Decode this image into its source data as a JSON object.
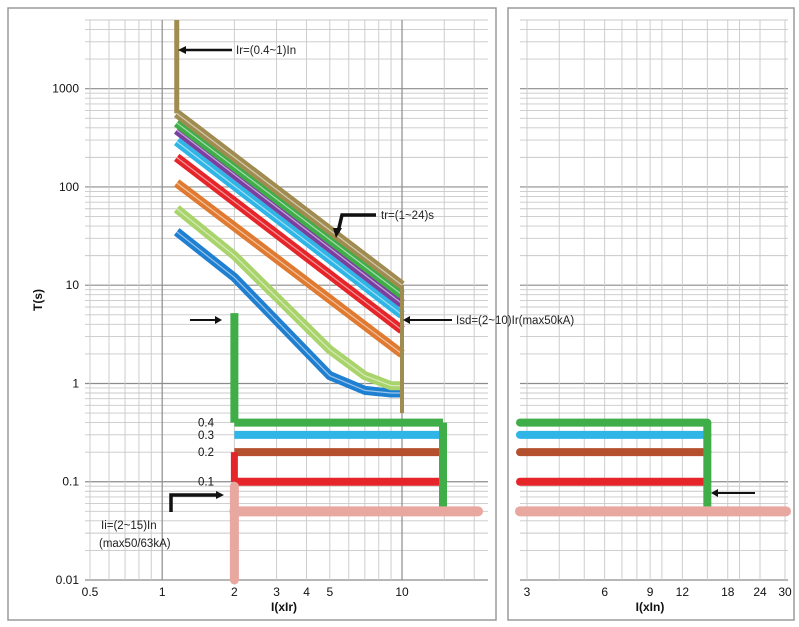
{
  "chart_data": {
    "type": "line",
    "y_scale": "log",
    "x_scale_left": "log",
    "x_scale_right": "log",
    "grid": true,
    "left_panel": {
      "xlabel": "I(xIr)",
      "ylabel": "T(s)",
      "xlim": [
        0.5,
        20
      ],
      "ylim": [
        0.01,
        5000
      ],
      "x_ticks": [
        "0.5",
        "1",
        "2",
        "3",
        "4",
        "5",
        "10"
      ],
      "x_tick_values": [
        0.5,
        1,
        2,
        3,
        4,
        5,
        10
      ],
      "y_ticks": [
        "0.01",
        "0.1",
        "1",
        "10",
        "100",
        "1000"
      ],
      "y_tick_values": [
        0.01,
        0.1,
        1,
        10,
        100,
        1000
      ],
      "long_delay_curves": [
        {
          "color": "#1f7fd0",
          "points": [
            [
              1.15,
              35
            ],
            [
              2,
              12
            ],
            [
              5,
              1.2
            ],
            [
              7,
              0.85
            ],
            [
              9,
              0.8
            ],
            [
              10,
              0.8
            ]
          ]
        },
        {
          "color": "#a9d36b",
          "points": [
            [
              1.15,
              60
            ],
            [
              2,
              20
            ],
            [
              5,
              2.2
            ],
            [
              7,
              1.2
            ],
            [
              9,
              0.95
            ],
            [
              10,
              0.95
            ]
          ]
        },
        {
          "color": "#e07a30",
          "points": [
            [
              1.15,
              110
            ],
            [
              10,
              2.0
            ]
          ]
        },
        {
          "color": "#e5252a",
          "points": [
            [
              1.15,
              200
            ],
            [
              10,
              3.5
            ]
          ]
        },
        {
          "color": "#2fb6e6",
          "points": [
            [
              1.15,
              290
            ],
            [
              10,
              5.0
            ]
          ]
        },
        {
          "color": "#7b3fa0",
          "points": [
            [
              1.15,
              380
            ],
            [
              10,
              6.5
            ]
          ]
        },
        {
          "color": "#3fae49",
          "points": [
            [
              1.15,
              450
            ],
            [
              10,
              8.0
            ]
          ]
        },
        {
          "color": "#a08c50",
          "points": [
            [
              1.15,
              560
            ],
            [
              10,
              10
            ]
          ]
        }
      ],
      "short_delay_levels": [
        {
          "label": "0.4",
          "value": 0.4,
          "color": "#3fae49"
        },
        {
          "label": "0.3",
          "value": 0.3,
          "color": "#2fb6e6"
        },
        {
          "label": "0.2",
          "value": 0.2,
          "color": "#b4502e"
        },
        {
          "label": "0.1",
          "value": 0.1,
          "color": "#e5252a"
        }
      ],
      "instantaneous_level": {
        "value": 0.05,
        "color": "#e8a8a0"
      },
      "annotations": [
        {
          "text": "Ir=(0.4~1)In"
        },
        {
          "text": "tr=(1~24)s"
        },
        {
          "text": "Isd=(2~10)Ir(max50kA)"
        },
        {
          "text": "Ii=(2~15)In"
        },
        {
          "text": "(max50/63kA)"
        }
      ]
    },
    "right_panel": {
      "xlabel": "I(xIn)",
      "xlim": [
        3,
        30
      ],
      "x_ticks": [
        "3",
        "6",
        "9",
        "12",
        "18",
        "24",
        "30"
      ],
      "x_tick_values": [
        3,
        6,
        9,
        12,
        18,
        24,
        30
      ]
    }
  }
}
